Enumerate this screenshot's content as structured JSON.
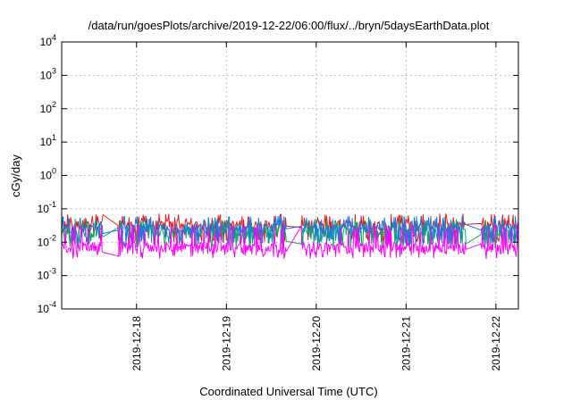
{
  "chart_data": {
    "type": "line",
    "title": "/data/run/goesPlots/archive/2019-12-22/06:00/flux/../bryn/5daysEarthData.plot",
    "xlabel": "Coordinated Universal Time (UTC)",
    "ylabel": "cGy/day",
    "yscale": "log",
    "ylim_exp": [
      -4,
      4
    ],
    "yticks": [
      {
        "base": "10",
        "exp": "-4"
      },
      {
        "base": "10",
        "exp": "-3"
      },
      {
        "base": "10",
        "exp": "-2"
      },
      {
        "base": "10",
        "exp": "-1"
      },
      {
        "base": "10",
        "exp": "0"
      },
      {
        "base": "10",
        "exp": "1"
      },
      {
        "base": "10",
        "exp": "2"
      },
      {
        "base": "10",
        "exp": "3"
      },
      {
        "base": "10",
        "exp": "4"
      }
    ],
    "xlim": [
      "2019-12-17T04:00",
      "2019-12-22T06:00"
    ],
    "xticks": [
      {
        "label": "2019-12-18",
        "date": "2019-12-18"
      },
      {
        "label": "2019-12-19",
        "date": "2019-12-19"
      },
      {
        "label": "2019-12-20",
        "date": "2019-12-20"
      },
      {
        "label": "2019-12-21",
        "date": "2019-12-21"
      },
      {
        "label": "2019-12-22",
        "date": "2019-12-22"
      }
    ],
    "grid": true,
    "series": [
      {
        "color": "#e41a1c",
        "base": 0.032,
        "low": 0.012,
        "high": 0.065
      },
      {
        "color": "#00b060",
        "base": 0.02,
        "low": 0.008,
        "high": 0.045
      },
      {
        "color": "#1a7ae0",
        "base": 0.026,
        "low": 0.01,
        "high": 0.055
      },
      {
        "color": "#ff00ff",
        "base": 0.007,
        "low": 0.004,
        "high": 0.03
      }
    ],
    "gaps": [
      [
        "2019-12-17T15:00",
        "2019-12-17T19:00"
      ],
      [
        "2019-12-19T16:00",
        "2019-12-19T20:00"
      ],
      [
        "2019-12-21T16:00",
        "2019-12-21T20:00"
      ]
    ]
  }
}
